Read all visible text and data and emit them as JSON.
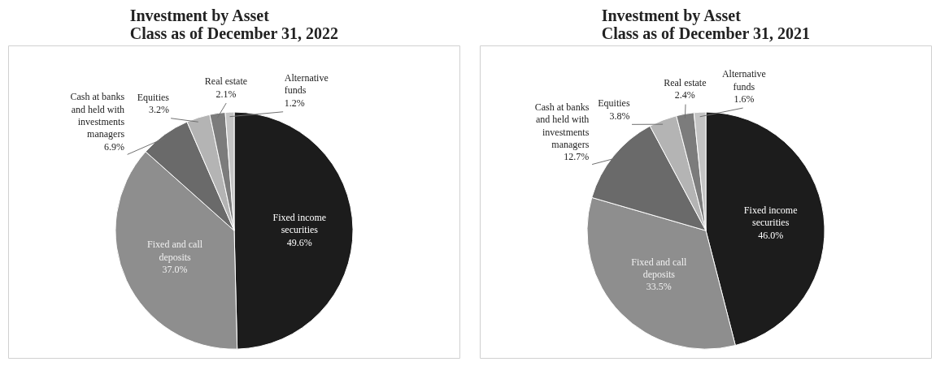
{
  "chart_data": [
    {
      "type": "pie",
      "title": "Investment by Asset\nClass as of December 31, 2022",
      "categories": [
        "Fixed income\nsecurities",
        "Fixed and call\ndeposits",
        "Cash at banks\nand held with\ninvestments\nmanagers",
        "Equities",
        "Real estate",
        "Alternative\nfunds"
      ],
      "values": [
        49.6,
        37.0,
        6.9,
        3.2,
        2.1,
        1.2
      ],
      "colors": [
        "#1c1c1c",
        "#8e8e8e",
        "#6a6a6a",
        "#b4b4b4",
        "#7c7c7c",
        "#c4c4c4"
      ],
      "value_labels": [
        "49.6%",
        "37.0%",
        "6.9%",
        "3.2%",
        "2.1%",
        "1.2%"
      ]
    },
    {
      "type": "pie",
      "title": "Investment by Asset\nClass as of December 31, 2021",
      "categories": [
        "Fixed income\nsecurities",
        "Fixed and call\ndeposits",
        "Cash at banks\nand held with\ninvestments\nmanagers",
        "Equities",
        "Real estate",
        "Alternative\nfunds"
      ],
      "values": [
        46.0,
        33.5,
        12.7,
        3.8,
        2.4,
        1.6
      ],
      "colors": [
        "#1c1c1c",
        "#8e8e8e",
        "#6a6a6a",
        "#b4b4b4",
        "#7c7c7c",
        "#c4c4c4"
      ],
      "value_labels": [
        "46.0%",
        "33.5%",
        "12.7%",
        "3.8%",
        "2.4%",
        "1.6%"
      ]
    }
  ]
}
